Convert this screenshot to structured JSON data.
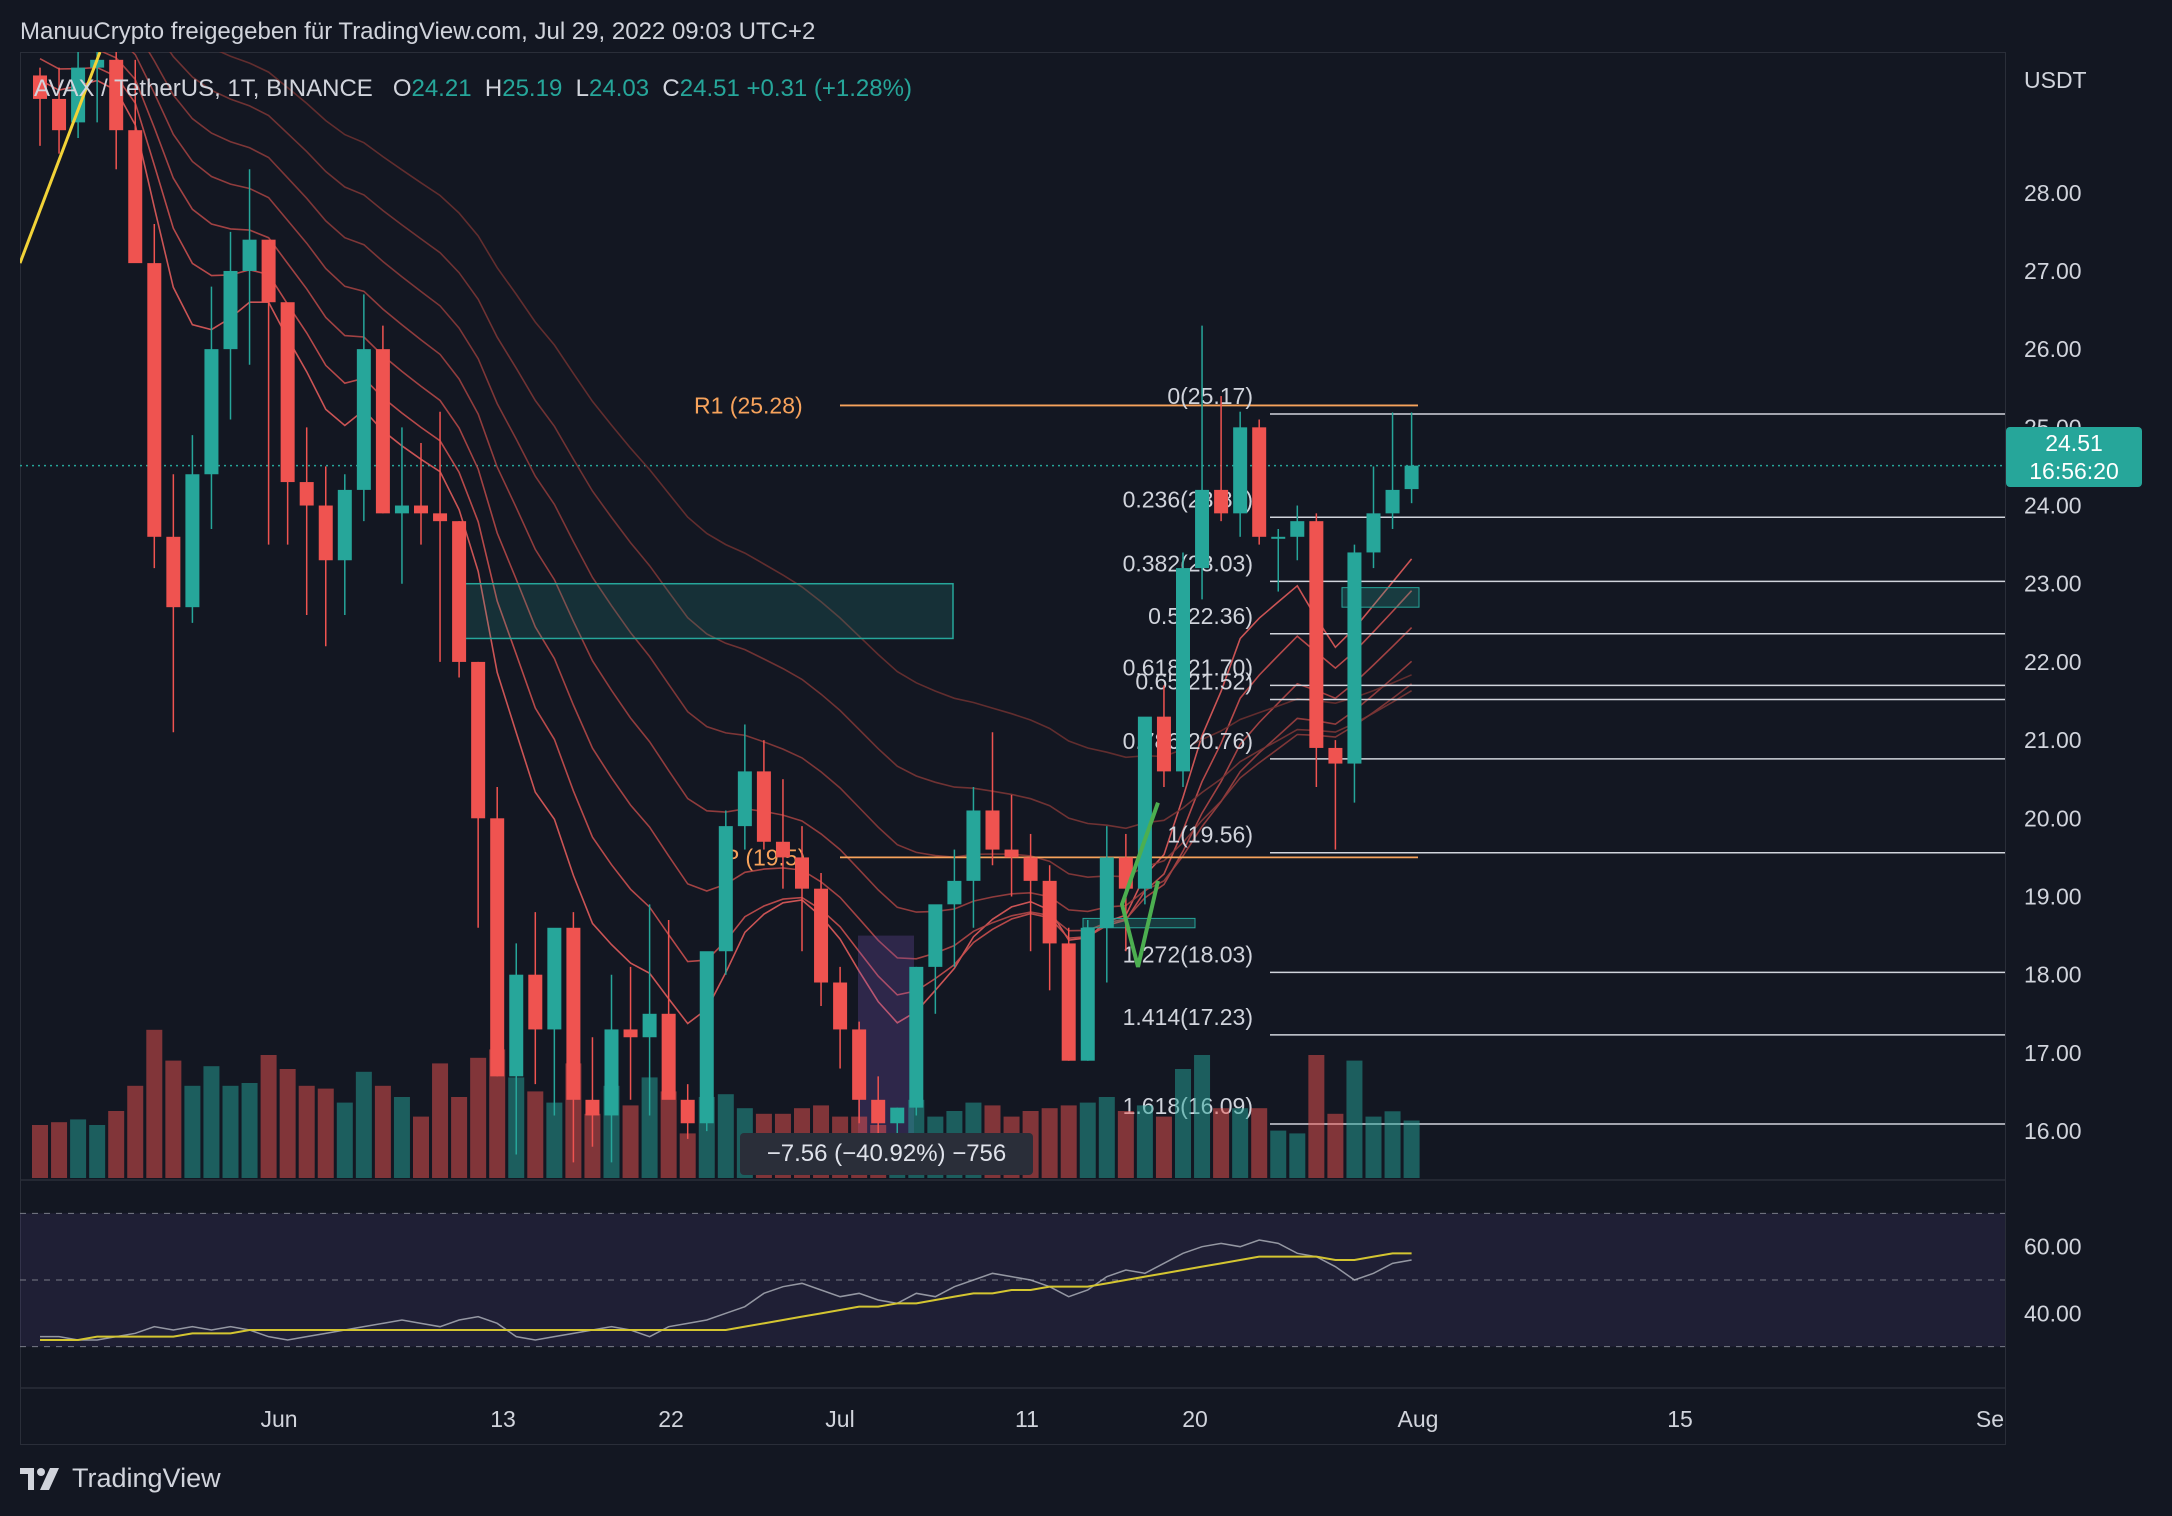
{
  "header": {
    "text": "ManuuCrypto freigegeben für TradingView.com, Jul 29, 2022 09:03 UTC+2"
  },
  "legend": {
    "symbol": "AVAX / TetherUS, 1T, BINANCE",
    "o_label": "O",
    "o": "24.21",
    "h_label": "H",
    "h": "25.19",
    "l_label": "L",
    "l": "24.03",
    "c_label": "C",
    "c": "24.51",
    "change": "+0.31 (+1.28%)"
  },
  "price_axis": {
    "unit": "USDT",
    "ticks": [
      "28.00",
      "27.00",
      "26.00",
      "25.00",
      "24.00",
      "23.00",
      "22.00",
      "21.00",
      "20.00",
      "19.00",
      "18.00",
      "17.00",
      "16.00"
    ]
  },
  "price_tag": {
    "price": "24.51",
    "countdown": "16:56:20"
  },
  "rsi_axis": {
    "ticks": [
      "60.00",
      "40.00"
    ]
  },
  "time_axis": {
    "ticks": [
      "Jun",
      "13",
      "22",
      "Jul",
      "11",
      "20",
      "Aug",
      "15",
      "Se"
    ]
  },
  "measure": {
    "text": "−7.56 (−40.92%) −756"
  },
  "pivots": [
    {
      "label": "R1 (25.28)",
      "value": 25.28
    },
    {
      "label": "P (19.5)",
      "value": 19.5
    }
  ],
  "fib_levels": [
    {
      "label": "0(25.17)",
      "value": 25.17
    },
    {
      "label": "0.236(23.85)",
      "value": 23.85
    },
    {
      "label": "0.382(23.03)",
      "value": 23.03
    },
    {
      "label": "0.5(22.36)",
      "value": 22.36
    },
    {
      "label": "0.618(21.70)",
      "value": 21.7
    },
    {
      "label": "0.65(21.52)",
      "value": 21.52
    },
    {
      "label": "0.786(20.76)",
      "value": 20.76
    },
    {
      "label": "1(19.56)",
      "value": 19.56
    },
    {
      "label": "1.272(18.03)",
      "value": 18.03
    },
    {
      "label": "1.414(17.23)",
      "value": 17.23
    },
    {
      "label": "1.618(16.09)",
      "value": 16.09
    }
  ],
  "footer": {
    "brand": "TradingView"
  },
  "colors": {
    "up": "#26a69a",
    "down": "#ef5350",
    "background": "#131722",
    "pivot": "#f7a35c",
    "fib": "#d1d4dc",
    "rsi_band": "#7e57c2",
    "rsi_ma": "#d4c531"
  },
  "chart_data": {
    "type": "candlestick",
    "symbol": "AVAX / TetherUS",
    "interval": "1T",
    "exchange": "BINANCE",
    "ylim": [
      15.4,
      29.8
    ],
    "rsi_ylim": [
      20,
      75
    ],
    "candles": [
      [
        29.5,
        29.6,
        28.6,
        29.2,
        "Jun"
      ],
      [
        29.2,
        29.6,
        28.5,
        28.8
      ],
      [
        28.9,
        29.9,
        28.7,
        29.6
      ],
      [
        29.6,
        29.9,
        28.9,
        29.7
      ],
      [
        29.7,
        29.8,
        28.3,
        28.8
      ],
      [
        28.8,
        29.7,
        27.3,
        27.1
      ],
      [
        27.1,
        27.6,
        23.2,
        23.6
      ],
      [
        23.6,
        24.4,
        21.1,
        22.7
      ],
      [
        22.7,
        24.9,
        22.5,
        24.4
      ],
      [
        24.4,
        26.8,
        23.7,
        26.0
      ],
      [
        26.0,
        27.5,
        25.1,
        27.0
      ],
      [
        27.0,
        28.3,
        25.8,
        27.4
      ],
      [
        27.4,
        27.0,
        23.5,
        26.6
      ],
      [
        26.6,
        26.5,
        23.5,
        24.3
      ],
      [
        24.3,
        25.0,
        22.6,
        24.0
      ],
      [
        24.0,
        24.5,
        22.2,
        23.3
      ],
      [
        23.3,
        24.4,
        22.6,
        24.2
      ],
      [
        24.2,
        26.7,
        23.8,
        26.0
      ],
      [
        26.0,
        26.3,
        23.9,
        23.9
      ],
      [
        23.9,
        25.0,
        23.0,
        24.0
      ],
      [
        24.0,
        24.8,
        23.5,
        23.9
      ],
      [
        23.9,
        25.2,
        22.0,
        23.8
      ],
      [
        23.8,
        23.8,
        21.8,
        22.0,
        "13"
      ],
      [
        22.0,
        22.0,
        18.6,
        20.0
      ],
      [
        20.0,
        20.4,
        16.7,
        16.7
      ],
      [
        16.7,
        18.4,
        15.7,
        18.0
      ],
      [
        18.0,
        18.8,
        16.6,
        17.3
      ],
      [
        17.3,
        18.0,
        16.2,
        18.6
      ],
      [
        18.6,
        18.8,
        15.6,
        16.4
      ],
      [
        16.4,
        17.2,
        15.8,
        16.2
      ],
      [
        16.2,
        18.0,
        15.6,
        17.3
      ],
      [
        17.3,
        18.1,
        16.4,
        17.2
      ],
      [
        17.2,
        18.9,
        16.2,
        17.5
      ],
      [
        17.5,
        18.7,
        16.5,
        16.4
      ],
      [
        16.4,
        16.6,
        15.9,
        16.1
      ],
      [
        16.1,
        18.0,
        16.0,
        18.3,
        "22"
      ],
      [
        18.3,
        20.1,
        18.0,
        19.9
      ],
      [
        19.9,
        21.2,
        19.6,
        20.6
      ],
      [
        20.6,
        21.0,
        19.6,
        19.7
      ],
      [
        19.7,
        20.5,
        19.1,
        19.5
      ],
      [
        19.5,
        19.9,
        18.3,
        19.1
      ],
      [
        19.1,
        19.3,
        17.6,
        17.9
      ],
      [
        17.9,
        18.1,
        16.8,
        17.3
      ],
      [
        17.3,
        17.4,
        16.1,
        16.4
      ],
      [
        16.4,
        16.7,
        15.7,
        16.1
      ],
      [
        16.1,
        16.3,
        15.7,
        16.3
      ],
      [
        16.3,
        18.1,
        16.2,
        18.1,
        "Jul"
      ],
      [
        18.1,
        18.8,
        17.5,
        18.9
      ],
      [
        18.9,
        19.6,
        18.1,
        19.2
      ],
      [
        19.2,
        20.4,
        18.6,
        20.1
      ],
      [
        20.1,
        21.1,
        19.4,
        19.6
      ],
      [
        19.6,
        20.3,
        19.0,
        19.5
      ],
      [
        19.5,
        19.8,
        18.3,
        19.2
      ],
      [
        19.2,
        19.4,
        17.8,
        18.4
      ],
      [
        18.4,
        18.6,
        16.9,
        16.9
      ],
      [
        16.9,
        18.7,
        16.9,
        18.6,
        "11"
      ],
      [
        18.6,
        19.9,
        17.9,
        19.5
      ],
      [
        19.5,
        19.8,
        18.3,
        19.1
      ],
      [
        19.1,
        20.6,
        18.9,
        21.3
      ],
      [
        21.3,
        21.7,
        20.4,
        20.6
      ],
      [
        20.6,
        23.4,
        20.4,
        23.2
      ],
      [
        23.2,
        26.3,
        22.8,
        24.2
      ],
      [
        24.2,
        25.4,
        23.8,
        23.9
      ],
      [
        23.9,
        25.2,
        23.6,
        25.0,
        "20"
      ],
      [
        25.0,
        25.1,
        23.5,
        23.6
      ],
      [
        23.6,
        23.7,
        22.9,
        23.6
      ],
      [
        23.6,
        24.0,
        23.3,
        23.8
      ],
      [
        23.8,
        23.9,
        20.4,
        20.9
      ],
      [
        20.9,
        21.0,
        19.6,
        20.7
      ],
      [
        20.7,
        23.5,
        20.2,
        23.4
      ],
      [
        23.4,
        24.5,
        23.2,
        23.9
      ],
      [
        23.9,
        25.19,
        23.7,
        24.2
      ],
      [
        24.21,
        25.19,
        24.03,
        24.51
      ]
    ],
    "rsi": [
      33,
      33,
      32,
      32,
      33,
      34,
      36,
      35,
      36,
      35,
      36,
      35,
      33,
      32,
      33,
      34,
      35,
      36,
      37,
      38,
      37,
      36,
      38,
      39,
      37,
      33,
      32,
      33,
      34,
      35,
      36,
      35,
      33,
      36,
      37,
      38,
      40,
      42,
      46,
      48,
      49,
      47,
      45,
      46,
      44,
      43,
      46,
      45,
      48,
      50,
      52,
      51,
      50,
      48,
      45,
      47,
      51,
      53,
      52,
      55,
      58,
      60,
      61,
      60,
      62,
      61,
      58,
      57,
      54,
      50,
      52,
      55,
      56
    ],
    "rsi_ma": [
      32,
      32,
      32,
      33,
      33,
      33,
      33,
      33,
      34,
      34,
      34,
      35,
      35,
      35,
      35,
      35,
      35,
      35,
      35,
      35,
      35,
      35,
      35,
      35,
      35,
      35,
      35,
      35,
      35,
      35,
      35,
      35,
      35,
      35,
      35,
      35,
      35,
      36,
      37,
      38,
      39,
      40,
      41,
      42,
      42,
      43,
      43,
      44,
      45,
      46,
      46,
      47,
      47,
      48,
      48,
      48,
      49,
      50,
      51,
      52,
      53,
      54,
      55,
      56,
      57,
      57,
      57,
      57,
      56,
      56,
      57,
      58,
      58
    ]
  }
}
